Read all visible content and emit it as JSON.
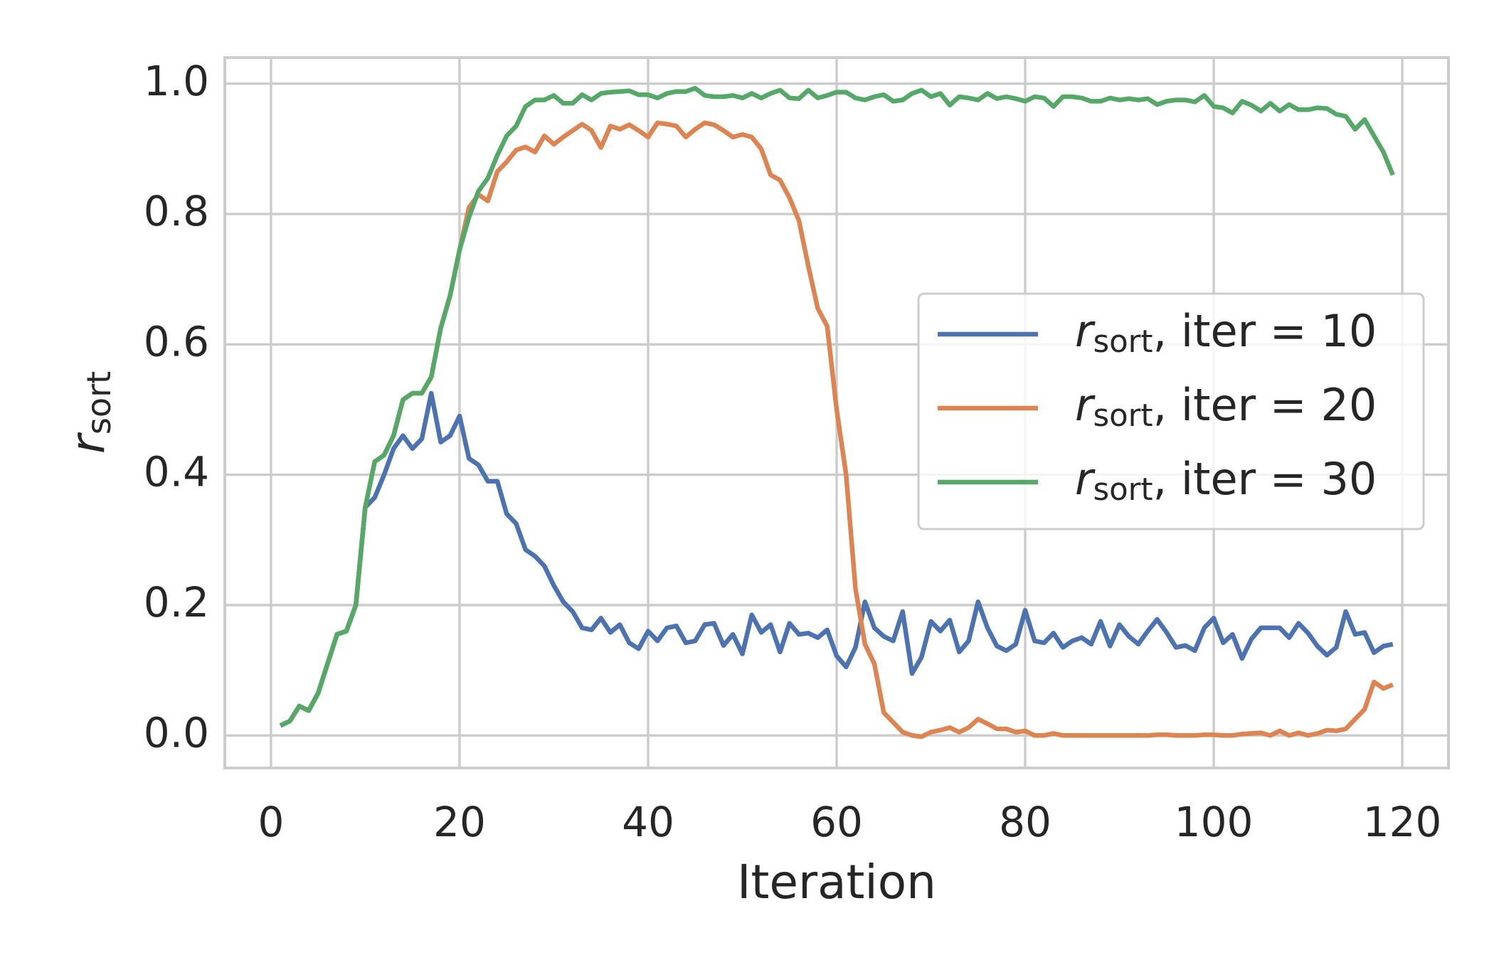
{
  "chart_data": {
    "type": "line",
    "x_label": "Iteration",
    "y_label": "r_sort",
    "x": [
      1,
      2,
      3,
      4,
      5,
      6,
      7,
      8,
      9,
      10,
      11,
      12,
      13,
      14,
      15,
      16,
      17,
      18,
      19,
      20,
      21,
      22,
      23,
      24,
      25,
      26,
      27,
      28,
      29,
      30,
      31,
      32,
      33,
      34,
      35,
      36,
      37,
      38,
      39,
      40,
      41,
      42,
      43,
      44,
      45,
      46,
      47,
      48,
      49,
      50,
      51,
      52,
      53,
      54,
      55,
      56,
      57,
      58,
      59,
      60,
      61,
      62,
      63,
      64,
      65,
      66,
      67,
      68,
      69,
      70,
      71,
      72,
      73,
      74,
      75,
      76,
      77,
      78,
      79,
      80,
      81,
      82,
      83,
      84,
      85,
      86,
      87,
      88,
      89,
      90,
      91,
      92,
      93,
      94,
      95,
      96,
      97,
      98,
      99,
      100,
      101,
      102,
      103,
      104,
      105,
      106,
      107,
      108,
      109,
      110,
      111,
      112,
      113,
      114,
      115,
      116,
      117,
      118,
      119
    ],
    "series": [
      {
        "name": "r_sort, iter = 10",
        "color": "#4c72b0",
        "values": [
          0.015,
          0.022,
          0.045,
          0.038,
          0.065,
          0.11,
          0.155,
          0.16,
          0.2,
          0.35,
          0.365,
          0.4,
          0.44,
          0.46,
          0.44,
          0.455,
          0.525,
          0.45,
          0.46,
          0.49,
          0.425,
          0.415,
          0.39,
          0.39,
          0.34,
          0.325,
          0.285,
          0.275,
          0.26,
          0.23,
          0.205,
          0.19,
          0.165,
          0.162,
          0.18,
          0.158,
          0.17,
          0.142,
          0.133,
          0.16,
          0.145,
          0.165,
          0.168,
          0.142,
          0.145,
          0.17,
          0.172,
          0.138,
          0.155,
          0.125,
          0.185,
          0.158,
          0.17,
          0.128,
          0.172,
          0.155,
          0.157,
          0.15,
          0.162,
          0.122,
          0.105,
          0.135,
          0.205,
          0.165,
          0.152,
          0.145,
          0.19,
          0.095,
          0.12,
          0.175,
          0.16,
          0.177,
          0.128,
          0.145,
          0.205,
          0.165,
          0.137,
          0.13,
          0.14,
          0.192,
          0.145,
          0.142,
          0.157,
          0.135,
          0.145,
          0.15,
          0.14,
          0.175,
          0.137,
          0.17,
          0.152,
          0.14,
          0.16,
          0.178,
          0.158,
          0.135,
          0.138,
          0.13,
          0.165,
          0.18,
          0.142,
          0.155,
          0.118,
          0.148,
          0.165,
          0.165,
          0.165,
          0.15,
          0.172,
          0.157,
          0.137,
          0.123,
          0.135,
          0.19,
          0.155,
          0.158,
          0.127,
          0.137,
          0.14
        ]
      },
      {
        "name": "r_sort, iter = 20",
        "color": "#dd8452",
        "values": [
          0.015,
          0.022,
          0.045,
          0.038,
          0.065,
          0.11,
          0.155,
          0.16,
          0.2,
          0.35,
          0.42,
          0.43,
          0.46,
          0.515,
          0.525,
          0.525,
          0.55,
          0.625,
          0.675,
          0.745,
          0.81,
          0.83,
          0.82,
          0.865,
          0.88,
          0.898,
          0.903,
          0.895,
          0.92,
          0.907,
          0.918,
          0.928,
          0.938,
          0.928,
          0.902,
          0.935,
          0.93,
          0.937,
          0.928,
          0.918,
          0.94,
          0.938,
          0.935,
          0.918,
          0.93,
          0.94,
          0.937,
          0.928,
          0.918,
          0.922,
          0.918,
          0.9,
          0.86,
          0.852,
          0.825,
          0.79,
          0.72,
          0.655,
          0.628,
          0.5,
          0.4,
          0.225,
          0.14,
          0.11,
          0.035,
          0.02,
          0.005,
          0.0,
          -0.002,
          0.005,
          0.008,
          0.012,
          0.005,
          0.012,
          0.025,
          0.018,
          0.01,
          0.01,
          0.005,
          0.007,
          0.0,
          0.0,
          0.003,
          0.0,
          0.0,
          0.0,
          0.0,
          0.0,
          0.0,
          0.0,
          0.0,
          0.0,
          0.0,
          0.001,
          0.001,
          0.0,
          0.0,
          0.0,
          0.001,
          0.001,
          0.0,
          0.0,
          0.002,
          0.003,
          0.004,
          0.0,
          0.007,
          0.0,
          0.004,
          0.0,
          0.003,
          0.008,
          0.007,
          0.01,
          0.025,
          0.04,
          0.082,
          0.072,
          0.078
        ]
      },
      {
        "name": "r_sort, iter = 30",
        "color": "#55a868",
        "values": [
          0.015,
          0.022,
          0.045,
          0.038,
          0.065,
          0.11,
          0.155,
          0.16,
          0.2,
          0.35,
          0.42,
          0.43,
          0.46,
          0.515,
          0.525,
          0.525,
          0.55,
          0.625,
          0.675,
          0.745,
          0.795,
          0.835,
          0.855,
          0.89,
          0.92,
          0.935,
          0.965,
          0.975,
          0.975,
          0.982,
          0.97,
          0.97,
          0.983,
          0.975,
          0.985,
          0.987,
          0.988,
          0.989,
          0.983,
          0.983,
          0.978,
          0.985,
          0.988,
          0.988,
          0.993,
          0.982,
          0.98,
          0.98,
          0.982,
          0.978,
          0.985,
          0.978,
          0.985,
          0.99,
          0.978,
          0.977,
          0.99,
          0.978,
          0.982,
          0.987,
          0.987,
          0.978,
          0.975,
          0.98,
          0.983,
          0.973,
          0.975,
          0.985,
          0.99,
          0.98,
          0.985,
          0.967,
          0.98,
          0.978,
          0.975,
          0.985,
          0.977,
          0.98,
          0.977,
          0.973,
          0.98,
          0.978,
          0.965,
          0.98,
          0.98,
          0.978,
          0.973,
          0.973,
          0.978,
          0.975,
          0.977,
          0.975,
          0.977,
          0.968,
          0.973,
          0.975,
          0.975,
          0.972,
          0.982,
          0.965,
          0.963,
          0.955,
          0.973,
          0.967,
          0.958,
          0.97,
          0.958,
          0.968,
          0.96,
          0.96,
          0.963,
          0.962,
          0.953,
          0.95,
          0.93,
          0.945,
          0.92,
          0.895,
          0.86
        ]
      }
    ],
    "xlim": [
      -4.9,
      124.9
    ],
    "ylim": [
      -0.05,
      1.04
    ],
    "xticks": [
      0,
      20,
      40,
      60,
      80,
      100,
      120
    ],
    "yticks": [
      {
        "value": 0,
        "label": "0.0"
      },
      {
        "value": 0.2,
        "label": "0.2"
      },
      {
        "value": 0.4,
        "label": "0.4"
      },
      {
        "value": 0.6,
        "label": "0.6"
      },
      {
        "value": 0.8,
        "label": "0.8"
      },
      {
        "value": 1,
        "label": "1.0"
      }
    ],
    "grid": true,
    "legend": "center right"
  }
}
